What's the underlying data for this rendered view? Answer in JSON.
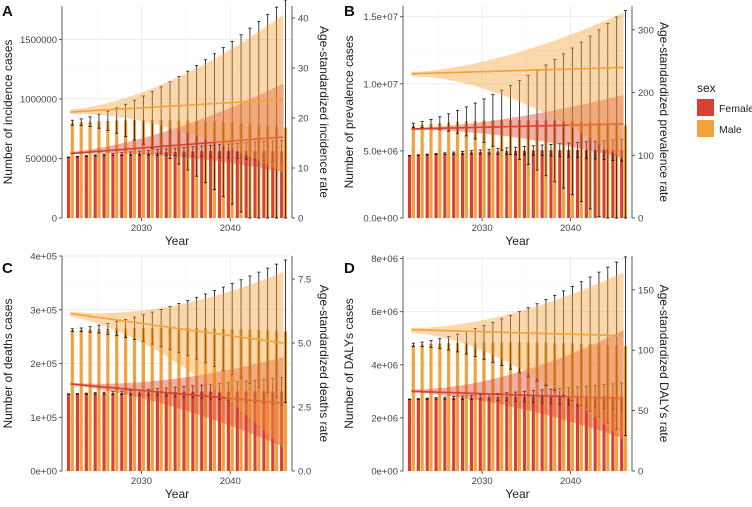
{
  "legend": {
    "title": "sex",
    "items": [
      {
        "label": "Female",
        "color": "#d94032"
      },
      {
        "label": "Male",
        "color": "#f2a23a"
      }
    ]
  },
  "chart_data": [
    {
      "type": "bar",
      "panel": "A",
      "xlabel": "Year",
      "ylabel": "Number of incidence cases",
      "y2label": "Age-standardized incidence rate",
      "x_start": 2022,
      "x_end": 2046,
      "xticks": [
        2030,
        2040
      ],
      "ylim": [
        0,
        1780000
      ],
      "yticks": [
        0,
        500000,
        1000000,
        1500000
      ],
      "ytick_labels": [
        "0",
        "500000",
        "1000000",
        "1500000"
      ],
      "y2lim": [
        0,
        42.4
      ],
      "y2ticks": [
        0,
        10,
        20,
        30,
        40
      ],
      "y2tick_labels": [
        "0",
        "10",
        "20",
        "30",
        "40"
      ],
      "series": [
        {
          "name": "Female",
          "start": 510000,
          "mid": 555000,
          "end": 560000,
          "err_end": 90000
        },
        {
          "name": "Male",
          "start": 800000,
          "mid": 820000,
          "end": 760000,
          "err_end": 1050000
        }
      ],
      "rate_series": [
        {
          "name": "Female",
          "start": 12.9,
          "end": 16.2,
          "lo_end": 9.4,
          "hi_end": 26.6
        },
        {
          "name": "Male",
          "start": 21.2,
          "end": 23.7,
          "lo_end": 9.4,
          "hi_end": 40.2
        }
      ]
    },
    {
      "type": "bar",
      "panel": "B",
      "xlabel": "Year",
      "ylabel": "Number of prevalence cases",
      "y2label": "Age-standardized prevalence rate",
      "x_start": 2022,
      "x_end": 2046,
      "xticks": [
        2030,
        2040
      ],
      "ylim": [
        0,
        15800000
      ],
      "yticks": [
        0,
        5000000,
        10000000,
        15000000
      ],
      "ytick_labels": [
        "0.0e+00",
        "5.0e+06",
        "1.0e+07",
        "1.5e+07"
      ],
      "y2lim": [
        0,
        338
      ],
      "y2ticks": [
        0,
        100,
        200,
        300
      ],
      "y2tick_labels": [
        "0",
        "100",
        "200",
        "300"
      ],
      "series": [
        {
          "name": "Female",
          "start": 4650000,
          "mid": 5000000,
          "end": 5050000,
          "err_end": 800000
        },
        {
          "name": "Male",
          "start": 6900000,
          "mid": 7300000,
          "end": 6900000,
          "err_end": 8400000
        }
      ],
      "rate_series": [
        {
          "name": "Female",
          "start": 142,
          "end": 150,
          "lo_end": 97,
          "hi_end": 195
        },
        {
          "name": "Male",
          "start": 230,
          "end": 240,
          "lo_end": 97,
          "hi_end": 325
        }
      ]
    },
    {
      "type": "bar",
      "panel": "C",
      "xlabel": "Year",
      "ylabel": "Number of deaths cases",
      "y2label": "Age-standardized deaths rate",
      "x_start": 2022,
      "x_end": 2046,
      "xticks": [
        2030,
        2040
      ],
      "ylim": [
        0,
        400000
      ],
      "yticks": [
        0,
        100000,
        200000,
        300000,
        400000
      ],
      "ytick_labels": [
        "0e+00",
        "1e+05",
        "2e+05",
        "3e+05",
        "4e+05"
      ],
      "y2lim": [
        0,
        8.4
      ],
      "y2ticks": [
        0,
        2.5,
        5.0,
        7.5
      ],
      "y2tick_labels": [
        "0.0",
        "2.5",
        "5.0",
        "7.5"
      ],
      "series": [
        {
          "name": "Female",
          "start": 143000,
          "mid": 147000,
          "end": 148000,
          "err_end": 25000
        },
        {
          "name": "Male",
          "start": 262000,
          "mid": 266000,
          "end": 260000,
          "err_end": 130000
        }
      ],
      "rate_series": [
        {
          "name": "Female",
          "start": 3.4,
          "end": 2.65,
          "lo_end": 1.0,
          "hi_end": 4.4
        },
        {
          "name": "Male",
          "start": 6.15,
          "end": 5.0,
          "lo_end": 1.0,
          "hi_end": 7.7
        }
      ]
    },
    {
      "type": "bar",
      "panel": "D",
      "xlabel": "Year",
      "ylabel": "Number of DALYs cases",
      "y2label": "Age-standardized DALYs rate",
      "x_start": 2022,
      "x_end": 2046,
      "xticks": [
        2030,
        2040
      ],
      "ylim": [
        0,
        8100000
      ],
      "yticks": [
        0,
        2000000,
        4000000,
        6000000,
        8000000
      ],
      "ytick_labels": [
        "0e+00",
        "2e+06",
        "4e+06",
        "6e+06",
        "8e+06"
      ],
      "y2lim": [
        0,
        178
      ],
      "y2ticks": [
        0,
        50,
        100,
        150
      ],
      "y2tick_labels": [
        "0",
        "50",
        "100",
        "150"
      ],
      "series": [
        {
          "name": "Female",
          "start": 2700000,
          "mid": 2800000,
          "end": 2800000,
          "err_end": 500000
        },
        {
          "name": "Male",
          "start": 4750000,
          "mid": 4850000,
          "end": 4700000,
          "err_end": 3300000
        }
      ],
      "rate_series": [
        {
          "name": "Female",
          "start": 66,
          "end": 60,
          "lo_end": 28,
          "hi_end": 115
        },
        {
          "name": "Male",
          "start": 117,
          "end": 112,
          "lo_end": 28,
          "hi_end": 163
        }
      ]
    }
  ]
}
